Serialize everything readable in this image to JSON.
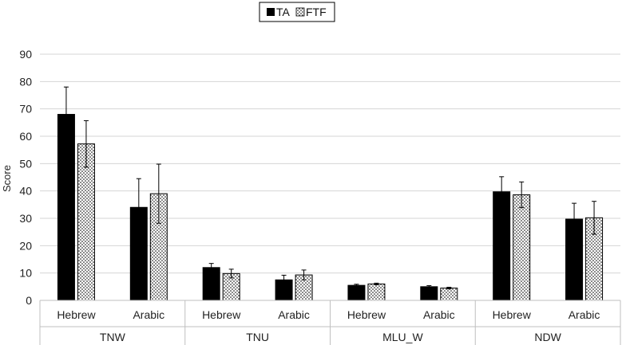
{
  "chart_data": {
    "type": "bar",
    "ylabel": "Score",
    "ylim": [
      0,
      90
    ],
    "yticks": [
      0,
      10,
      20,
      30,
      40,
      50,
      60,
      70,
      80,
      90
    ],
    "grid": true,
    "legend_position": "top-center",
    "groups": [
      {
        "name": "TNW",
        "categories": [
          "Hebrew",
          "Arabic"
        ]
      },
      {
        "name": "TNU",
        "categories": [
          "Hebrew",
          "Arabic"
        ]
      },
      {
        "name": "MLU_W",
        "categories": [
          "Hebrew",
          "Arabic"
        ]
      },
      {
        "name": "NDW",
        "categories": [
          "Hebrew",
          "Arabic"
        ]
      }
    ],
    "series": [
      {
        "name": "TA",
        "color": "#000000",
        "values": [
          68,
          34,
          12,
          7.5,
          5.5,
          5,
          39.7,
          29.7
        ],
        "error": [
          10,
          10.5,
          1.5,
          1.7,
          0.4,
          0.4,
          5.5,
          5.8
        ]
      },
      {
        "name": "FTF",
        "color": "#ffffff",
        "pattern": "dots",
        "values": [
          57.2,
          39,
          9.8,
          9.3,
          6,
          4.5,
          38.6,
          30.2
        ],
        "error": [
          8.5,
          10.8,
          1.6,
          1.8,
          0.3,
          0.3,
          4.7,
          6
        ]
      }
    ]
  }
}
